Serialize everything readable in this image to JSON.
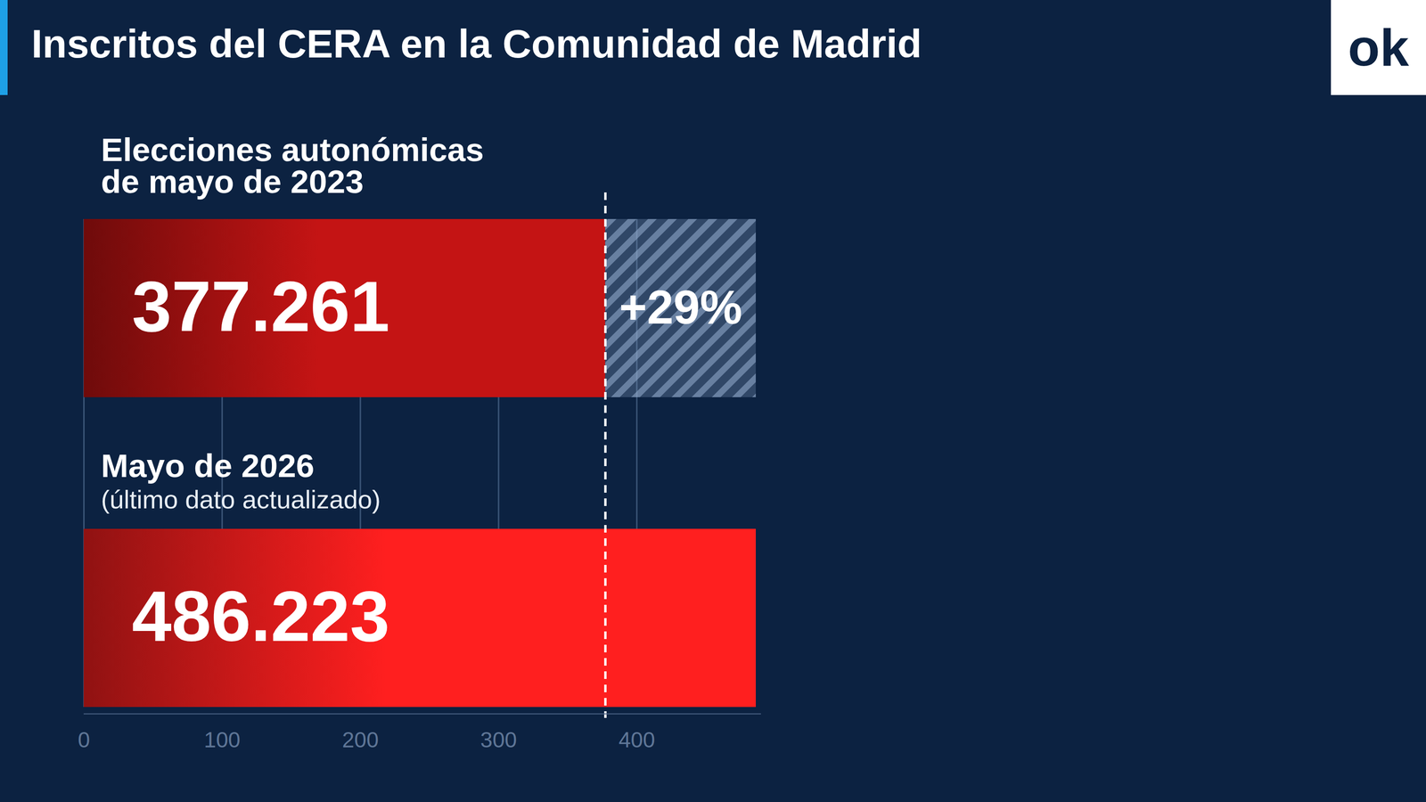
{
  "chart_data": {
    "type": "bar",
    "orientation": "horizontal",
    "title": "Inscritos del CERA en la Comunidad de Madrid",
    "categories": [
      "Elecciones autonómicas de mayo de 2023",
      "Mayo de 2026"
    ],
    "category_notes": [
      null,
      "(último dato actualizado)"
    ],
    "values": [
      377.261,
      486.223
    ],
    "colors": [
      "#c41414",
      "#ff1f1f"
    ],
    "data_labels": true,
    "annotations": [
      {
        "text": "+29%"
      }
    ],
    "xlim": [
      0,
      490
    ],
    "xticks": [
      0,
      100,
      200,
      300,
      400
    ],
    "grid": true,
    "logo": "ok"
  }
}
